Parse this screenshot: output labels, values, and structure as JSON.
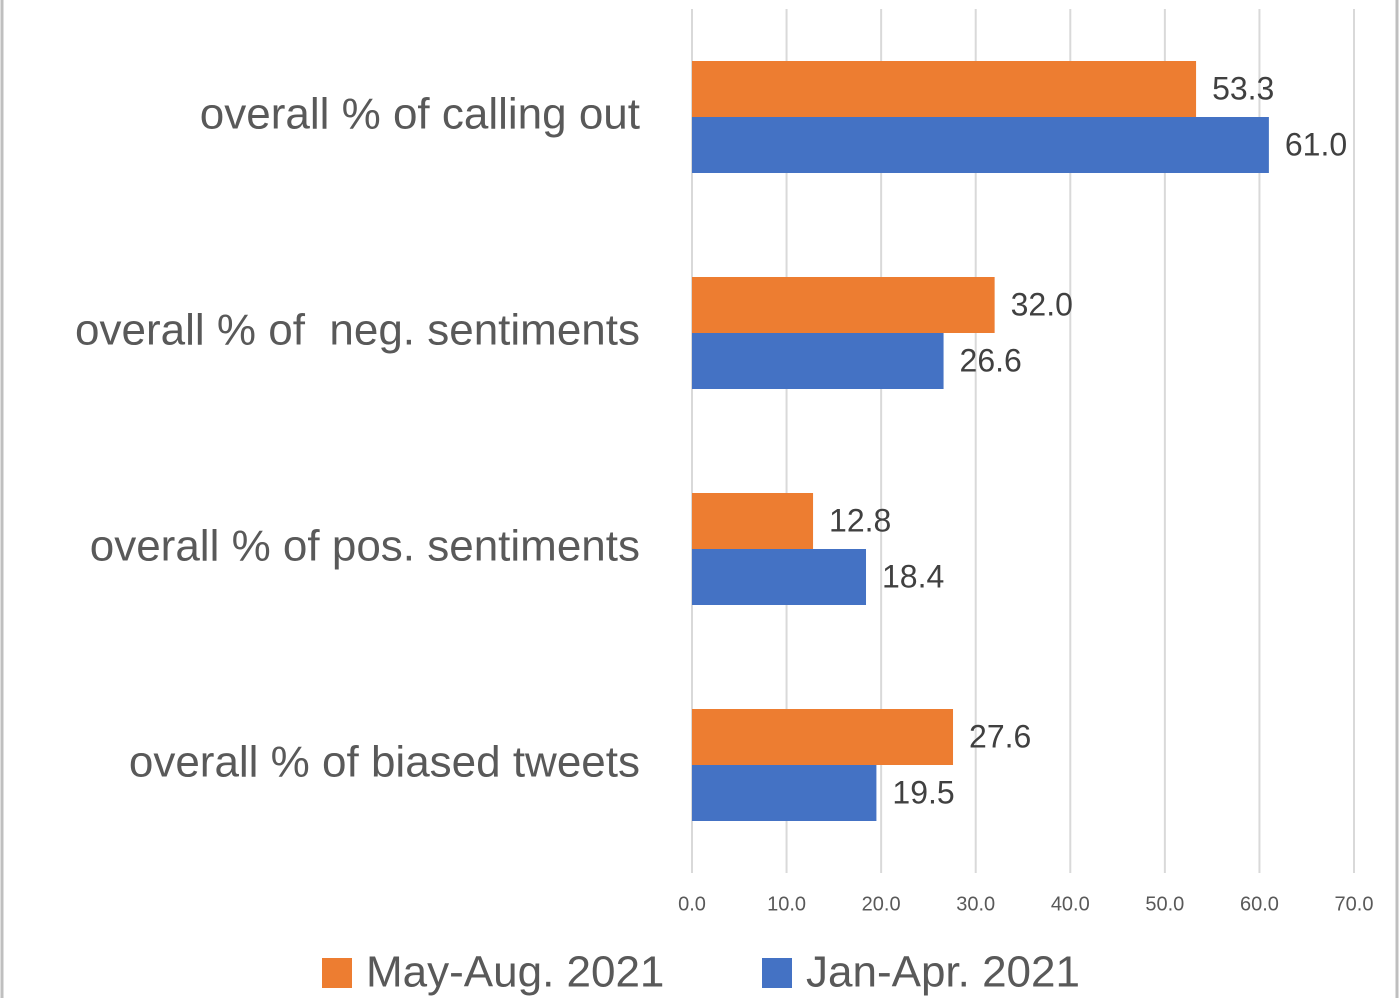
{
  "chart_data": {
    "type": "bar",
    "orientation": "horizontal",
    "categories": [
      "overall % of calling out",
      "overall % of  neg. sentiments",
      "overall % of pos. sentiments",
      "overall % of biased tweets"
    ],
    "series": [
      {
        "name": "May-Aug. 2021",
        "color": "#ed7d31",
        "values": [
          53.3,
          32,
          12.8,
          27.6
        ],
        "value_labels": [
          "53.3",
          "32.0",
          "12.8",
          "27.6"
        ]
      },
      {
        "name": "Jan-Apr. 2021",
        "color": "#4472c4",
        "values": [
          61,
          26.6,
          18.4,
          19.5
        ],
        "value_labels": [
          "61.0",
          "26.6",
          "18.4",
          "19.5"
        ]
      }
    ],
    "xlim": [
      0,
      70
    ],
    "xticks": [
      {
        "value": 0,
        "label": "0.0"
      },
      {
        "value": 10,
        "label": "10.0"
      },
      {
        "value": 20,
        "label": "20.0"
      },
      {
        "value": 30,
        "label": "30.0"
      },
      {
        "value": 40,
        "label": "40.0"
      },
      {
        "value": 50,
        "label": "50.0"
      },
      {
        "value": 60,
        "label": "60.0"
      },
      {
        "value": 70,
        "label": "70.0"
      }
    ],
    "grid": true,
    "legend": "bottom"
  }
}
